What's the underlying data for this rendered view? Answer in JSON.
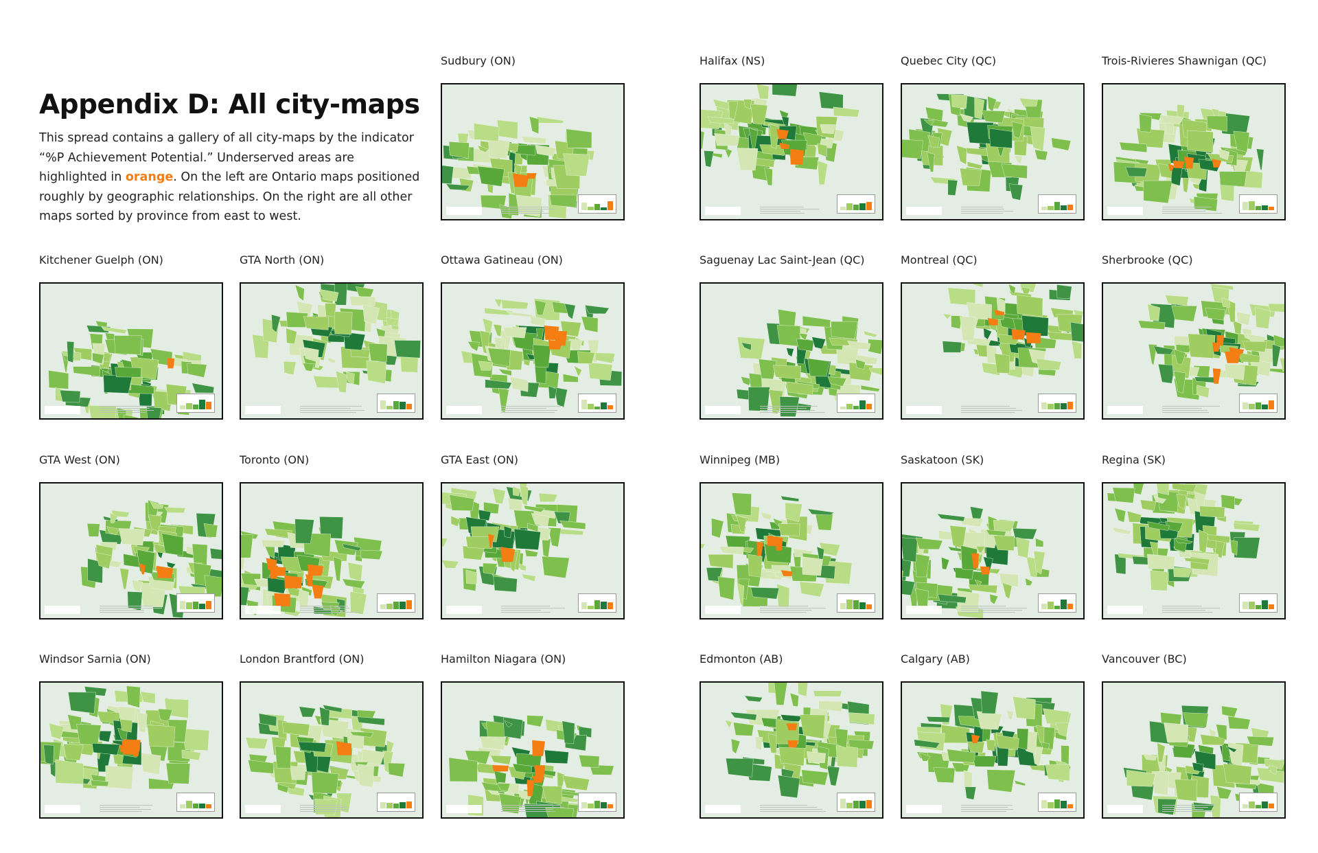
{
  "intro": {
    "title": "Appendix D: All city-maps",
    "text_before": "This spread contains a gallery of all city-maps by the indicator “%P Achievement Potential.” Underserved areas are highlighted in ",
    "highlight": "orange",
    "text_after": ". On the left are Ontario maps positioned roughly by geographic relationships. On the right are all other maps sorted by province from east to west."
  },
  "colors": {
    "underserved": "#f47e14",
    "dark_green": "#1f7a3a",
    "mid_green": "#58a83a",
    "light_green": "#9fcd62",
    "pale_green": "#d3e6b4",
    "background": "#e3ede4",
    "water": "#ffffff"
  },
  "maps": [
    {
      "label": "Sudbury (ON)"
    },
    {
      "label": "Halifax (NS)"
    },
    {
      "label": "Quebec City (QC)"
    },
    {
      "label": "Trois-Rivieres Shawnigan (QC)"
    },
    {
      "label": "Kitchener Guelph (ON)"
    },
    {
      "label": "GTA North (ON)"
    },
    {
      "label": "Ottawa Gatineau (ON)"
    },
    {
      "label": "Saguenay Lac Saint-Jean (QC)"
    },
    {
      "label": "Montreal (QC)"
    },
    {
      "label": "Sherbrooke (QC)"
    },
    {
      "label": "GTA West (ON)"
    },
    {
      "label": "Toronto (ON)"
    },
    {
      "label": "GTA East (ON)"
    },
    {
      "label": "Winnipeg (MB)"
    },
    {
      "label": "Saskatoon (SK)"
    },
    {
      "label": "Regina (SK)"
    },
    {
      "label": "Windsor Sarnia (ON)"
    },
    {
      "label": "London Brantford (ON)"
    },
    {
      "label": "Hamilton Niagara (ON)"
    },
    {
      "label": "Edmonton (AB)"
    },
    {
      "label": "Calgary (AB)"
    },
    {
      "label": "Vancouver (BC)"
    }
  ]
}
